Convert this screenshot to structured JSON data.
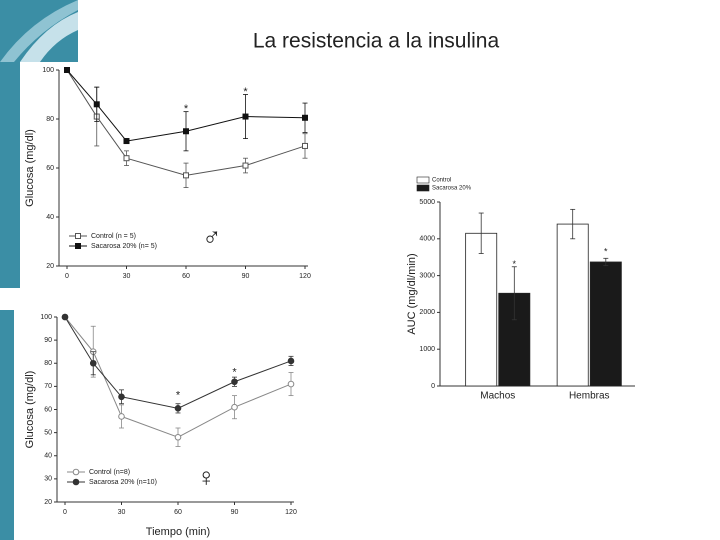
{
  "title": "La resistencia a la insulina",
  "chart_data": [
    {
      "type": "line",
      "ylabel": "Glucosa (mg/dl)",
      "x": [
        0,
        15,
        30,
        60,
        90,
        120
      ],
      "xlim": [
        0,
        120
      ],
      "xticks": [
        0,
        30,
        60,
        90,
        120
      ],
      "ylim": [
        20,
        100
      ],
      "yticks": [
        20,
        40,
        60,
        80,
        100
      ],
      "series": [
        {
          "name": "Control (n = 5)",
          "color": "#555555",
          "marker": "square",
          "filled": false,
          "values": [
            100,
            81,
            64,
            57,
            61,
            69
          ],
          "errors": [
            0,
            12,
            3,
            5,
            3,
            5
          ]
        },
        {
          "name": "Sacarosa 20% (n= 5)",
          "color": "#111111",
          "marker": "square",
          "filled": true,
          "values": [
            100,
            86,
            71,
            75,
            81,
            80.5
          ],
          "errors": [
            0,
            7,
            1,
            8,
            9,
            6
          ]
        }
      ],
      "annotations": [
        {
          "text": "*",
          "x": 60,
          "y": 84
        },
        {
          "text": "*",
          "x": 90,
          "y": 91
        },
        {
          "text": "♂",
          "x": 73,
          "y": 31,
          "color": "#f0a070"
        }
      ]
    },
    {
      "type": "line",
      "ylabel": "Glucosa (mg/dl)",
      "xlabel": "Tiempo (min)",
      "x": [
        0,
        15,
        30,
        60,
        90,
        120
      ],
      "xlim": [
        0,
        120
      ],
      "xticks": [
        0,
        30,
        60,
        90,
        120
      ],
      "ylim": [
        20,
        100
      ],
      "yticks": [
        20,
        30,
        40,
        50,
        60,
        70,
        80,
        90,
        100
      ],
      "series": [
        {
          "name": "Control (n=8)",
          "color": "#888888",
          "marker": "circle",
          "filled": false,
          "values": [
            100,
            85,
            57,
            48,
            61,
            71
          ],
          "errors": [
            0,
            11,
            5,
            4,
            5,
            5
          ]
        },
        {
          "name": "Sacarosa 20% (n=10)",
          "color": "#333333",
          "marker": "circle",
          "filled": true,
          "values": [
            100,
            80,
            65.5,
            60.5,
            72,
            81
          ],
          "errors": [
            0,
            5,
            3,
            2,
            2,
            2
          ]
        }
      ],
      "annotations": [
        {
          "text": "*",
          "x": 60,
          "y": 66
        },
        {
          "text": "*",
          "x": 90,
          "y": 76
        },
        {
          "text": "♀",
          "x": 75,
          "y": 30,
          "color": "#f0a070"
        }
      ]
    },
    {
      "type": "bar",
      "ylabel": "AUC (mg/dl/min)",
      "categories": [
        "Machos",
        "Hembras"
      ],
      "ylim": [
        0,
        5000
      ],
      "yticks": [
        0,
        1000,
        2000,
        3000,
        4000,
        5000
      ],
      "series": [
        {
          "name": "Control",
          "color": "#ffffff",
          "values": [
            4150,
            4400
          ],
          "errors": [
            550,
            400
          ]
        },
        {
          "name": "Sacarosa 20%",
          "color": "#1a1a1a",
          "values": [
            2520,
            3370
          ],
          "errors": [
            720,
            100
          ]
        }
      ],
      "annotations": [
        {
          "text": "*",
          "category": 0,
          "series": 1,
          "y": 3300
        },
        {
          "text": "*",
          "category": 1,
          "series": 1,
          "y": 3640
        }
      ]
    }
  ]
}
